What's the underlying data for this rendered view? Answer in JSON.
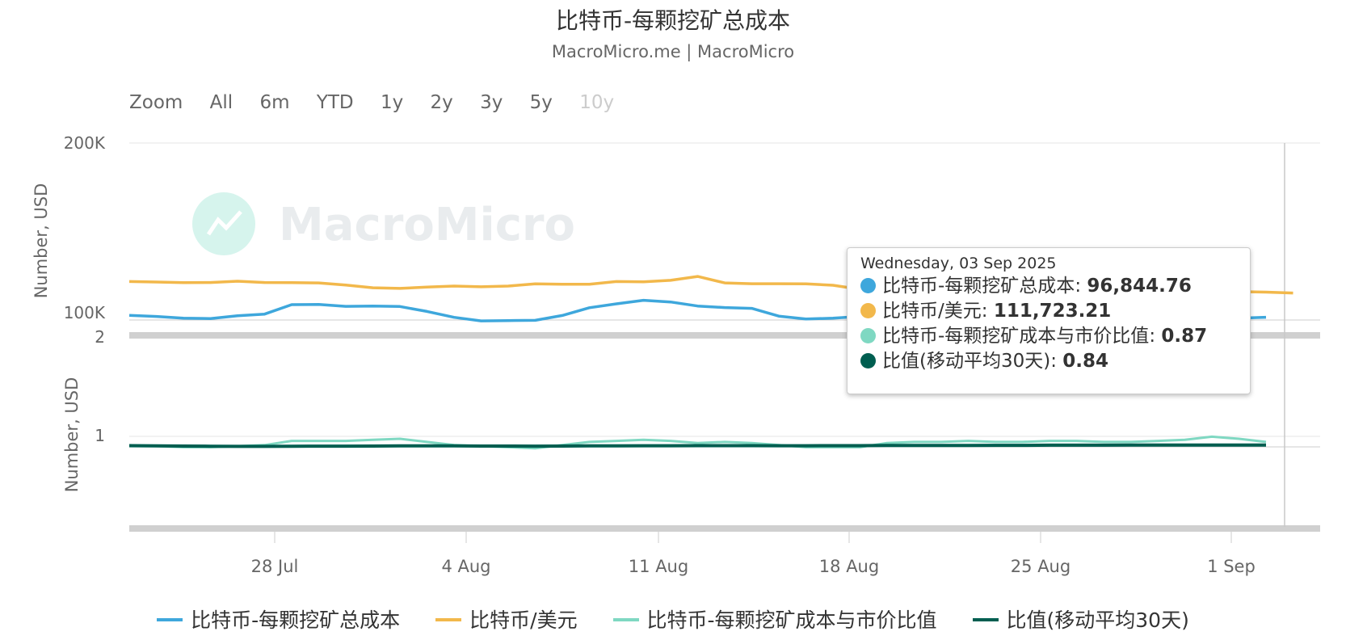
{
  "title": "比特币-每颗挖矿总成本",
  "subtitle": "MacroMicro.me | MacroMicro",
  "watermark": "MacroMicro",
  "zoom": {
    "label": "Zoom",
    "buttons": [
      "All",
      "6m",
      "YTD",
      "1y",
      "2y",
      "3y",
      "5y",
      "10y"
    ],
    "disabled": "10y"
  },
  "tooltip": {
    "date": "Wednesday, 03 Sep 2025",
    "rows": [
      {
        "label": "比特币-每颗挖矿总成本",
        "value": "96,844.76",
        "color": "#3ea7dc"
      },
      {
        "label": "比特币/美元",
        "value": "111,723.21",
        "color": "#f2b84b"
      },
      {
        "label": "比特币-每颗挖矿成本与市价比值",
        "value": "0.87",
        "color": "#7fd8c2"
      },
      {
        "label": "比值(移动平均30天)",
        "value": "0.84",
        "color": "#005e50"
      }
    ]
  },
  "chart_data": [
    {
      "type": "line",
      "ylabel": "Number, USD",
      "ytick_labels": [
        "200K",
        "100K"
      ],
      "ylim": [
        0,
        200000
      ],
      "x_tick_labels": [
        "28 Jul",
        "4 Aug",
        "11 Aug",
        "18 Aug",
        "25 Aug",
        "1 Sep"
      ],
      "series": [
        {
          "name": "比特币-每颗挖矿总成本",
          "color": "#3ea7dc",
          "values": [
            98000,
            97300,
            96300,
            96100,
            97700,
            98700,
            104300,
            104400,
            103300,
            103500,
            103200,
            100300,
            96800,
            94700,
            94900,
            95000,
            97900,
            102500,
            104800,
            106900,
            105900,
            103500,
            102600,
            102100,
            97500,
            95800,
            96300,
            97300,
            101000,
            98000,
            96200,
            95100,
            95800,
            95800,
            95300,
            96200,
            95800,
            95700,
            94700,
            94200,
            94600,
            96300,
            96844.76
          ]
        },
        {
          "name": "比特币/美元",
          "color": "#f2b84b",
          "values": [
            118000,
            117700,
            117300,
            117400,
            118200,
            117400,
            117300,
            117200,
            115900,
            114300,
            113900,
            114700,
            115300,
            114900,
            115300,
            116600,
            116400,
            116400,
            118000,
            117800,
            118700,
            121000,
            117200,
            116700,
            116700,
            116600,
            115800,
            113400,
            112600,
            113200,
            112400,
            112000,
            111800,
            112000,
            111800,
            110800,
            111100,
            111300,
            111000,
            110700,
            111600,
            112000,
            111723.21,
            111200
          ]
        }
      ]
    },
    {
      "type": "line",
      "ylabel": "Number, USD",
      "ytick_labels": [
        "2",
        "1"
      ],
      "ylim": [
        0,
        2
      ],
      "series": [
        {
          "name": "比特币-每颗挖矿成本与市价比值",
          "color": "#7fd8c2",
          "values": [
            0.83,
            0.83,
            0.82,
            0.82,
            0.83,
            0.84,
            0.88,
            0.88,
            0.88,
            0.89,
            0.9,
            0.87,
            0.84,
            0.83,
            0.82,
            0.81,
            0.84,
            0.87,
            0.88,
            0.89,
            0.88,
            0.86,
            0.87,
            0.86,
            0.84,
            0.82,
            0.82,
            0.82,
            0.86,
            0.87,
            0.87,
            0.88,
            0.87,
            0.87,
            0.88,
            0.88,
            0.87,
            0.87,
            0.88,
            0.89,
            0.92,
            0.9,
            0.87
          ]
        },
        {
          "name": "比值(移动平均30天)",
          "color": "#005e50",
          "values": [
            0.835,
            0.833,
            0.831,
            0.829,
            0.828,
            0.828,
            0.829,
            0.83,
            0.83,
            0.831,
            0.832,
            0.832,
            0.832,
            0.831,
            0.831,
            0.83,
            0.831,
            0.832,
            0.833,
            0.834,
            0.834,
            0.835,
            0.835,
            0.835,
            0.834,
            0.834,
            0.835,
            0.835,
            0.836,
            0.836,
            0.837,
            0.837,
            0.838,
            0.838,
            0.839,
            0.839,
            0.839,
            0.84,
            0.84,
            0.84,
            0.84,
            0.84,
            0.84
          ]
        }
      ]
    }
  ]
}
